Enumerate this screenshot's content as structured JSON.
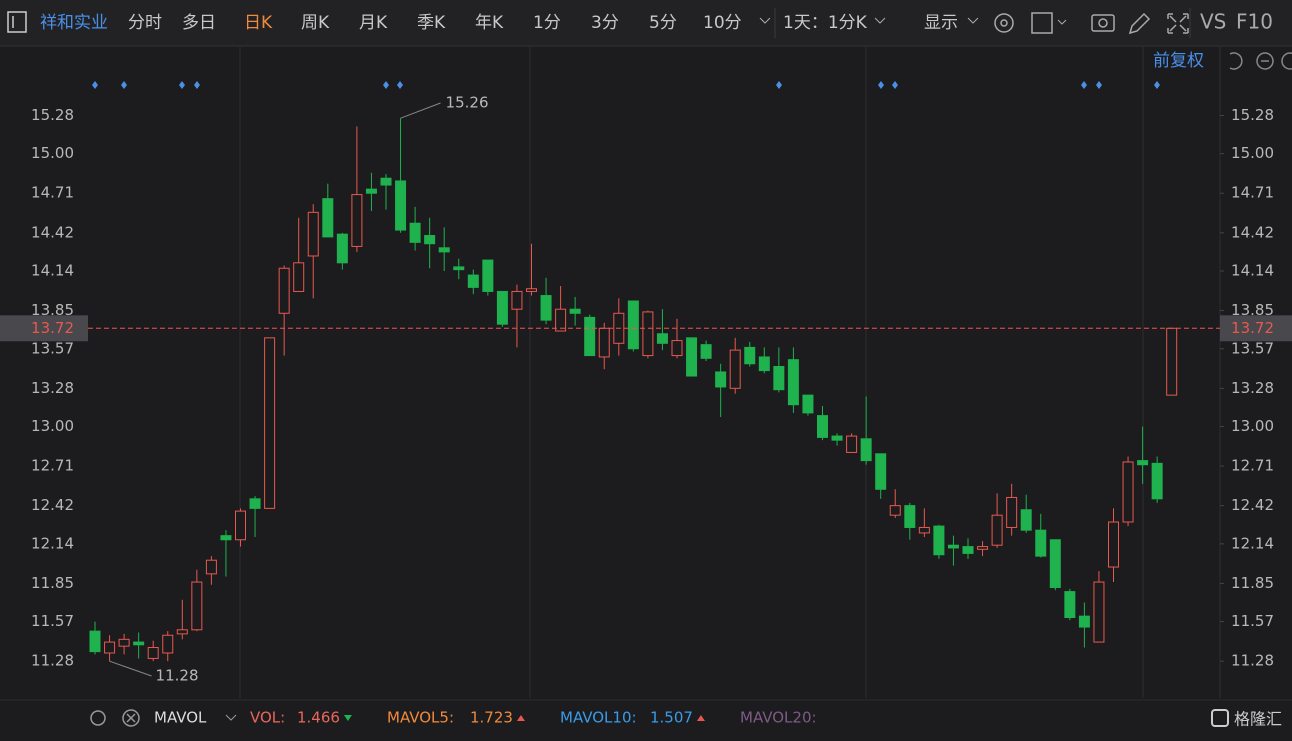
{
  "toolbar": {
    "stock_name": "祥和实业",
    "tabs": [
      "分时",
      "多日",
      "日K",
      "周K",
      "月K",
      "季K",
      "年K",
      "1分",
      "3分",
      "5分",
      "10分"
    ],
    "active_tab": "日K",
    "interval": "1天：1分K",
    "display": "显示",
    "vs": "VS",
    "f10": "F10"
  },
  "adjust": "前复权",
  "indicator_bar": {
    "name": "MAVOL",
    "items": [
      {
        "label": "VOL:",
        "value": 1.466,
        "color": "#e8675c",
        "trend": "down"
      },
      {
        "label": "MAVOL5:",
        "value": 1.723,
        "color": "#f08a3c",
        "trend": "up"
      },
      {
        "label": "MAVOL10:",
        "value": 1.507,
        "color": "#3a9be8",
        "trend": "up"
      },
      {
        "label": "MAVOL20:",
        "color": "#7d5a86"
      }
    ]
  },
  "logo": "格隆汇",
  "chart_data": {
    "type": "candlestick",
    "up_color": "#e8584f",
    "down_color": "#1fb24e",
    "ylim": [
      11.01,
      15.54
    ],
    "yticks": [
      15.28,
      {
        "value": 15,
        "label": "15.00"
      },
      14.71,
      14.42,
      14.14,
      13.85,
      13.57,
      13.28,
      {
        "value": 13,
        "label": "13.00"
      },
      12.71,
      12.42,
      12.14,
      11.85,
      11.57,
      11.28
    ],
    "last_price": 13.72,
    "max_label": 15.26,
    "min_label": 11.28,
    "open": [
      11.5,
      11.34,
      11.39,
      11.42,
      11.3,
      11.34,
      11.48,
      11.51,
      11.92,
      12.2,
      12.17,
      12.47,
      12.4,
      13.83,
      13.99,
      14.25,
      14.67,
      14.41,
      14.32,
      14.74,
      14.82,
      14.8,
      14.49,
      14.4,
      14.31,
      14.17,
      14.11,
      14.22,
      13.99,
      13.86,
      13.99,
      13.96,
      13.7,
      13.86,
      13.8,
      13.51,
      13.61,
      13.92,
      13.52,
      13.68,
      13.52,
      13.65,
      13.6,
      13.4,
      13.28,
      13.58,
      13.51,
      13.44,
      13.49,
      13.23,
      13.08,
      12.93,
      12.81,
      12.91,
      12.8,
      12.35,
      12.42,
      12.22,
      12.27,
      12.13,
      12.12,
      12.1,
      12.13,
      12.26,
      12.39,
      12.24,
      12.17,
      11.79,
      11.61,
      11.42,
      11.97,
      12.3,
      12.75,
      12.73,
      13.23
    ],
    "high": [
      11.57,
      11.47,
      11.48,
      11.49,
      11.43,
      11.5,
      11.73,
      11.95,
      12.05,
      12.24,
      12.4,
      12.49,
      13.65,
      14.18,
      14.53,
      14.63,
      14.78,
      14.42,
      15.2,
      14.86,
      14.85,
      15.26,
      14.61,
      14.53,
      14.46,
      14.23,
      14.15,
      14.22,
      13.99,
      14.04,
      14.34,
      14.09,
      14.03,
      13.95,
      13.82,
      13.76,
      13.94,
      13.92,
      13.85,
      13.86,
      13.79,
      13.65,
      13.63,
      13.46,
      13.65,
      13.62,
      13.58,
      13.58,
      13.58,
      13.23,
      13.15,
      12.95,
      12.95,
      13.22,
      12.8,
      12.54,
      12.44,
      12.4,
      12.28,
      12.2,
      12.18,
      12.16,
      12.51,
      12.58,
      12.5,
      12.36,
      12.17,
      11.81,
      11.71,
      11.94,
      12.4,
      12.78,
      13.0,
      12.78,
      13.72
    ],
    "low": [
      11.33,
      11.28,
      11.33,
      11.3,
      11.28,
      11.28,
      11.44,
      11.5,
      11.84,
      11.9,
      12.12,
      12.19,
      12.4,
      13.52,
      13.99,
      13.94,
      14.39,
      14.15,
      14.28,
      14.58,
      14.59,
      14.42,
      14.29,
      14.16,
      14.14,
      14.08,
      13.97,
      13.96,
      13.73,
      13.58,
      13.96,
      13.75,
      13.7,
      13.74,
      13.52,
      13.42,
      13.52,
      13.55,
      13.5,
      13.56,
      13.5,
      13.37,
      13.48,
      13.07,
      13.24,
      13.44,
      13.39,
      13.25,
      13.1,
      13.08,
      12.9,
      12.86,
      12.81,
      12.72,
      12.47,
      12.33,
      12.17,
      12.19,
      12.03,
      11.98,
      12.03,
      12.05,
      12.11,
      12.2,
      12.22,
      12.04,
      11.8,
      11.58,
      11.38,
      11.42,
      11.86,
      12.27,
      12.58,
      12.44,
      13.23
    ],
    "close": [
      11.35,
      11.42,
      11.44,
      11.4,
      11.38,
      11.47,
      11.51,
      11.86,
      12.02,
      12.17,
      12.38,
      12.4,
      13.65,
      14.16,
      14.2,
      14.57,
      14.39,
      14.2,
      14.7,
      14.71,
      14.77,
      14.44,
      14.35,
      14.34,
      14.28,
      14.15,
      14.02,
      13.99,
      13.75,
      13.99,
      14.01,
      13.78,
      13.86,
      13.83,
      13.52,
      13.72,
      13.83,
      13.57,
      13.84,
      13.61,
      13.63,
      13.37,
      13.5,
      13.29,
      13.56,
      13.46,
      13.41,
      13.27,
      13.16,
      13.1,
      12.92,
      12.9,
      12.93,
      12.75,
      12.54,
      12.42,
      12.26,
      12.26,
      12.06,
      12.11,
      12.07,
      12.12,
      12.35,
      12.48,
      12.24,
      12.05,
      11.82,
      11.6,
      11.53,
      11.86,
      12.3,
      12.74,
      12.72,
      12.47,
      13.72
    ]
  }
}
